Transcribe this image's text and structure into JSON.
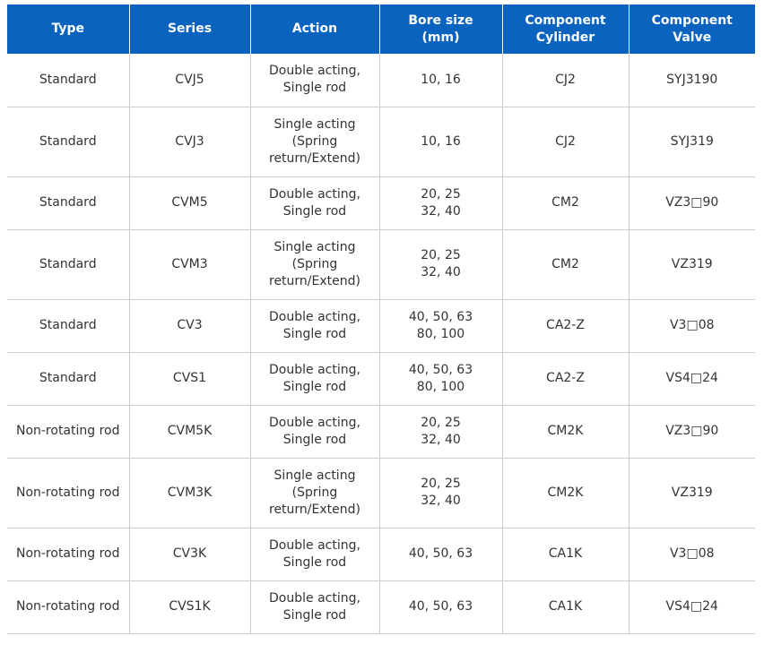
{
  "table": {
    "headers": [
      {
        "key": "type",
        "label": "Type"
      },
      {
        "key": "series",
        "label": "Series"
      },
      {
        "key": "action",
        "label": "Action"
      },
      {
        "key": "bore",
        "label": "Bore size\n(mm)"
      },
      {
        "key": "cylinder",
        "label": "Component\nCylinder"
      },
      {
        "key": "valve",
        "label": "Component\nValve"
      }
    ],
    "colors": {
      "header_bg": "#0a64bf",
      "header_text": "#ffffff",
      "border": "#cccccc",
      "body_text": "#333333"
    },
    "rows": [
      {
        "type": "Standard",
        "series": "CVJ5",
        "action": "Double acting,\nSingle rod",
        "bore": "10, 16",
        "cylinder": "CJ2",
        "valve": "SYJ3190"
      },
      {
        "type": "Standard",
        "series": "CVJ3",
        "action": "Single acting\n(Spring\nreturn/Extend)",
        "bore": "10, 16",
        "cylinder": "CJ2",
        "valve": "SYJ319"
      },
      {
        "type": "Standard",
        "series": "CVM5",
        "action": "Double acting,\nSingle rod",
        "bore": "20, 25\n32, 40",
        "cylinder": "CM2",
        "valve": "VZ3□90"
      },
      {
        "type": "Standard",
        "series": "CVM3",
        "action": "Single acting\n(Spring\nreturn/Extend)",
        "bore": "20, 25\n32, 40",
        "cylinder": "CM2",
        "valve": "VZ319"
      },
      {
        "type": "Standard",
        "series": "CV3",
        "action": "Double acting,\nSingle rod",
        "bore": "40, 50, 63\n80, 100",
        "cylinder": "CA2-Z",
        "valve": "V3□08"
      },
      {
        "type": "Standard",
        "series": "CVS1",
        "action": "Double acting,\nSingle rod",
        "bore": "40, 50, 63\n80, 100",
        "cylinder": "CA2-Z",
        "valve": "VS4□24"
      },
      {
        "type": "Non-rotating rod",
        "series": "CVM5K",
        "action": "Double acting,\nSingle rod",
        "bore": "20, 25\n32, 40",
        "cylinder": "CM2K",
        "valve": "VZ3□90"
      },
      {
        "type": "Non-rotating rod",
        "series": "CVM3K",
        "action": "Single acting\n(Spring\nreturn/Extend)",
        "bore": "20, 25\n32, 40",
        "cylinder": "CM2K",
        "valve": "VZ319"
      },
      {
        "type": "Non-rotating rod",
        "series": "CV3K",
        "action": "Double acting,\nSingle rod",
        "bore": "40, 50, 63",
        "cylinder": "CA1K",
        "valve": "V3□08"
      },
      {
        "type": "Non-rotating rod",
        "series": "CVS1K",
        "action": "Double acting,\nSingle rod",
        "bore": "40, 50, 63",
        "cylinder": "CA1K",
        "valve": "VS4□24"
      }
    ]
  }
}
